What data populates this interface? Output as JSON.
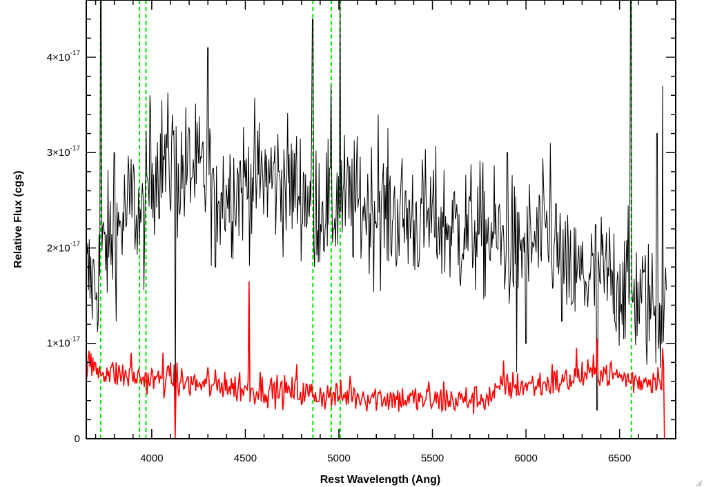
{
  "chart_data": {
    "type": "line",
    "xlabel": "Rest Wavelength (Ang)",
    "ylabel": "Relative Flux (cgs)",
    "xlim": [
      3650,
      6800
    ],
    "ylim": [
      0,
      4.6e-17
    ],
    "x_ticks": [
      4000,
      4500,
      5000,
      5500,
      6000,
      6500
    ],
    "x_tick_labels": [
      "4000",
      "4500",
      "5000",
      "5500",
      "6000",
      "6500"
    ],
    "y_ticks": [
      0,
      1e-17,
      2e-17,
      3e-17,
      4e-17
    ],
    "y_tick_labels": [
      {
        "mantissa": "0",
        "exponent": ""
      },
      {
        "mantissa": "1×10",
        "exponent": "-17"
      },
      {
        "mantissa": "2×10",
        "exponent": "-17"
      },
      {
        "mantissa": "3×10",
        "exponent": "-17"
      },
      {
        "mantissa": "4×10",
        "exponent": "-17"
      }
    ],
    "grid": false,
    "colors": {
      "spectrum": "#000000",
      "error": "#ff0000",
      "lines": "#00ee00"
    },
    "vertical_lines": [
      3727,
      3934,
      3969,
      4861,
      4959,
      5007,
      6563
    ],
    "spectrum_anchors": {
      "x": [
        3650,
        3700,
        3750,
        3800,
        3850,
        3900,
        3950,
        4000,
        4050,
        4100,
        4150,
        4200,
        4300,
        4400,
        4500,
        4600,
        4700,
        4800,
        4900,
        5000,
        5100,
        5200,
        5300,
        5400,
        5500,
        5600,
        5700,
        5800,
        5900,
        6000,
        6100,
        6150,
        6200,
        6300,
        6400,
        6500,
        6600,
        6700,
        6750
      ],
      "y": [
        1.7e-17,
        1.6e-17,
        2e-17,
        2.1e-17,
        2.3e-17,
        2.5e-17,
        2.2e-17,
        2.8e-17,
        2.95e-17,
        2.85e-17,
        2.75e-17,
        2.85e-17,
        2.7e-17,
        2.6e-17,
        2.7e-17,
        2.75e-17,
        2.7e-17,
        2.6e-17,
        2.45e-17,
        2.5e-17,
        2.45e-17,
        2.4e-17,
        2.35e-17,
        2.3e-17,
        2.3e-17,
        2.2e-17,
        2.2e-17,
        2.15e-17,
        2.05e-17,
        2e-17,
        2.1e-17,
        2.1e-17,
        1.65e-17,
        1.7e-17,
        1.7e-17,
        1.65e-17,
        1.5e-17,
        1.35e-17,
        1.3e-17
      ],
      "noise_sigma": 3.5e-18
    },
    "spectrum_spikes": [
      {
        "x": 3728,
        "y": 4.6e-17
      },
      {
        "x": 3800,
        "y": 3e-17
      },
      {
        "x": 3990,
        "y": 3.6e-17
      },
      {
        "x": 4110,
        "y": 3.4e-17
      },
      {
        "x": 4125,
        "y": 0.0
      },
      {
        "x": 4300,
        "y": 4.1e-17
      },
      {
        "x": 4340,
        "y": 1.8e-17
      },
      {
        "x": 4860,
        "y": 4.4e-17
      },
      {
        "x": 4870,
        "y": 1.8e-17
      },
      {
        "x": 4959,
        "y": 3.7e-17
      },
      {
        "x": 4975,
        "y": 2.2e-17
      },
      {
        "x": 5007,
        "y": 4.6e-17
      },
      {
        "x": 5210,
        "y": 3.4e-17
      },
      {
        "x": 5650,
        "y": 1.6e-17
      },
      {
        "x": 5900,
        "y": 3e-17
      },
      {
        "x": 5950,
        "y": 7e-18
      },
      {
        "x": 6000,
        "y": 1e-17
      },
      {
        "x": 6130,
        "y": 3.1e-17
      },
      {
        "x": 6380,
        "y": 3e-18
      },
      {
        "x": 6560,
        "y": 4.6e-17
      },
      {
        "x": 6700,
        "y": 3.2e-17
      },
      {
        "x": 6730,
        "y": 3.7e-17
      }
    ],
    "error_anchors": {
      "x": [
        3650,
        3700,
        3800,
        3900,
        4000,
        4100,
        4200,
        4300,
        4400,
        4500,
        4600,
        4700,
        4800,
        4900,
        5000,
        5100,
        5200,
        5300,
        5400,
        5500,
        5600,
        5700,
        5800,
        5900,
        6000,
        6100,
        6200,
        6300,
        6400,
        6500,
        6600,
        6700,
        6730
      ],
      "y": [
        7.8e-18,
        7.4e-18,
        6.8e-18,
        6.5e-18,
        6.2e-18,
        6e-18,
        5.8e-18,
        5.6e-18,
        5.4e-18,
        5.2e-18,
        5.1e-18,
        5e-18,
        4.8e-18,
        4.6e-18,
        4.4e-18,
        4.5e-18,
        4.4e-18,
        4.2e-18,
        4.1e-18,
        4e-18,
        4e-18,
        4.1e-18,
        4.3e-18,
        5.5e-18,
        5.6e-18,
        5.7e-18,
        6e-18,
        6.6e-18,
        7e-18,
        6.5e-18,
        6e-18,
        6.3e-18,
        6.8e-18
      ],
      "noise_sigma": 8e-19
    },
    "error_spikes": [
      {
        "x": 3890,
        "y": 9e-18
      },
      {
        "x": 4060,
        "y": 9e-18
      },
      {
        "x": 4100,
        "y": 8e-18
      },
      {
        "x": 4125,
        "y": 0.0
      },
      {
        "x": 4135,
        "y": 8e-18
      },
      {
        "x": 4300,
        "y": 7.5e-18
      },
      {
        "x": 4390,
        "y": 7e-18
      },
      {
        "x": 4470,
        "y": 7e-18
      },
      {
        "x": 4520,
        "y": 1.65e-17
      },
      {
        "x": 4580,
        "y": 7e-18
      },
      {
        "x": 4775,
        "y": 7.8e-18
      },
      {
        "x": 5060,
        "y": 6.6e-18
      },
      {
        "x": 5480,
        "y": 6e-18
      },
      {
        "x": 5560,
        "y": 6e-18
      },
      {
        "x": 5880,
        "y": 8.2e-18
      },
      {
        "x": 6140,
        "y": 7.8e-18
      },
      {
        "x": 6270,
        "y": 9.5e-18
      },
      {
        "x": 6380,
        "y": 1.05e-17
      },
      {
        "x": 6730,
        "y": 9.5e-18
      },
      {
        "x": 6740,
        "y": 0.0
      }
    ]
  }
}
